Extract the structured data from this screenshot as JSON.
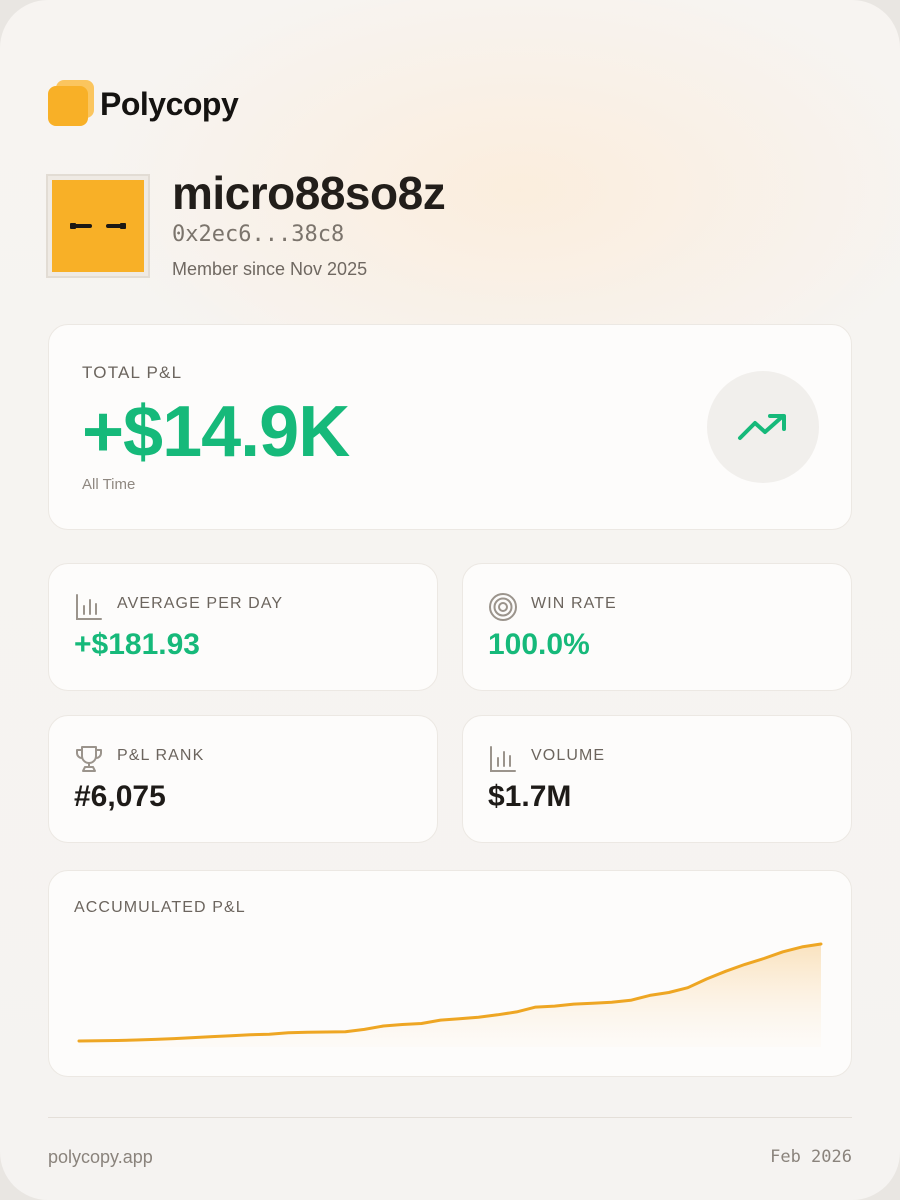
{
  "brand": {
    "name": "Polycopy",
    "icon": "polycopy-logo"
  },
  "profile": {
    "username": "micro88so8z",
    "wallet": "0x2ec6...38c8",
    "member_since": "Member since Nov 2025",
    "avatar_icon": "pixel-face-avatar"
  },
  "total_pnl": {
    "label": "TOTAL P&L",
    "value": "+$14.9K",
    "period": "All Time",
    "icon": "trending-up-icon"
  },
  "stats": {
    "avg_per_day": {
      "label": "AVERAGE PER DAY",
      "value": "+$181.93",
      "icon": "bar-chart-icon"
    },
    "win_rate": {
      "label": "WIN RATE",
      "value": "100.0%",
      "icon": "target-icon"
    },
    "pnl_rank": {
      "label": "P&L RANK",
      "value": "#6,075",
      "icon": "trophy-icon"
    },
    "volume": {
      "label": "VOLUME",
      "value": "$1.7M",
      "icon": "bar-chart-icon"
    }
  },
  "chart": {
    "label": "ACCUMULATED P&L"
  },
  "chart_data": {
    "type": "area",
    "title": "ACCUMULATED P&L",
    "xlabel": "",
    "ylabel": "",
    "grid": false,
    "legend": "none",
    "ylim": [
      0,
      100
    ],
    "values": [
      0,
      0.2,
      0.5,
      1,
      1.6,
      2.5,
      3.5,
      4.5,
      5.5,
      6.5,
      7,
      8.5,
      9,
      9.3,
      9.5,
      12,
      15.5,
      17,
      18,
      21.5,
      23,
      24.5,
      27,
      30,
      35,
      36,
      38,
      39,
      40,
      42,
      47,
      50,
      55,
      64,
      72,
      79,
      85,
      92,
      97,
      100
    ]
  },
  "colors": {
    "positive": "#16b97a",
    "accent": "#f8b027",
    "line": "#eea623"
  },
  "footer": {
    "domain": "polycopy.app",
    "date": "Feb 2026"
  }
}
